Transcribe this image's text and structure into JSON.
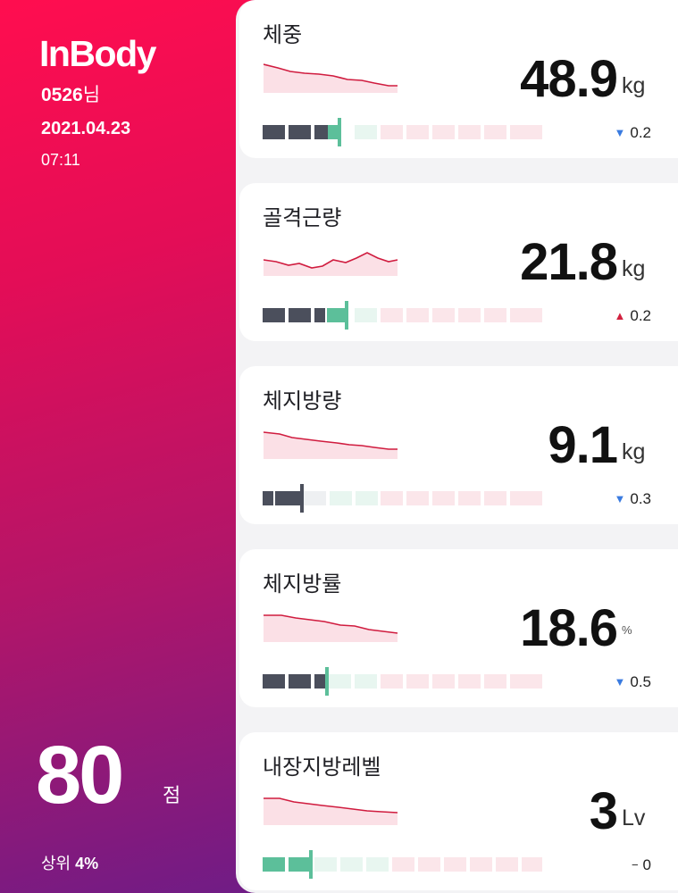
{
  "sidebar": {
    "logo": "InBody",
    "user_id": "0526",
    "user_suffix": "님",
    "date": "2021.04.23",
    "time": "07:11",
    "score": "80",
    "score_unit": "점",
    "rank_label": "상위",
    "rank_value": "4%"
  },
  "cards": [
    {
      "title": "체중",
      "value": "48.9",
      "unit": "kg",
      "change_dir": "down",
      "change_symbol": "▼",
      "change": "0.2",
      "level_fraction": 0.27,
      "current_zone": "normal"
    },
    {
      "title": "골격근량",
      "value": "21.8",
      "unit": "kg",
      "change_dir": "up",
      "change_symbol": "▲",
      "change": "0.2",
      "level_fraction": 0.3,
      "current_zone": "normal"
    },
    {
      "title": "체지방량",
      "value": "9.1",
      "unit": "kg",
      "change_dir": "down",
      "change_symbol": "▼",
      "change": "0.3",
      "level_fraction": 0.14,
      "current_zone": "low"
    },
    {
      "title": "체지방률",
      "value": "18.6",
      "unit": "%",
      "change_dir": "down",
      "change_symbol": "▼",
      "change": "0.5",
      "level_fraction": 0.24,
      "current_zone": "normal"
    },
    {
      "title": "내장지방레벨",
      "value": "3",
      "unit": "Lv",
      "change_dir": "none",
      "change_symbol": "−",
      "change": "0",
      "level_fraction": 0.17,
      "current_zone": "normal"
    }
  ],
  "colors": {
    "accent": "#ff0d4f",
    "sidebar_bottom": "#6f1c86",
    "bar_under": "#4b4f5c",
    "bar_normal": "#5cbf9a",
    "bar_normal_light": "#e8f6f0",
    "bar_over": "#fbe6ea",
    "spark_line": "#d01c3f",
    "arrow_down": "#3a7be0",
    "arrow_up": "#d2213f"
  }
}
